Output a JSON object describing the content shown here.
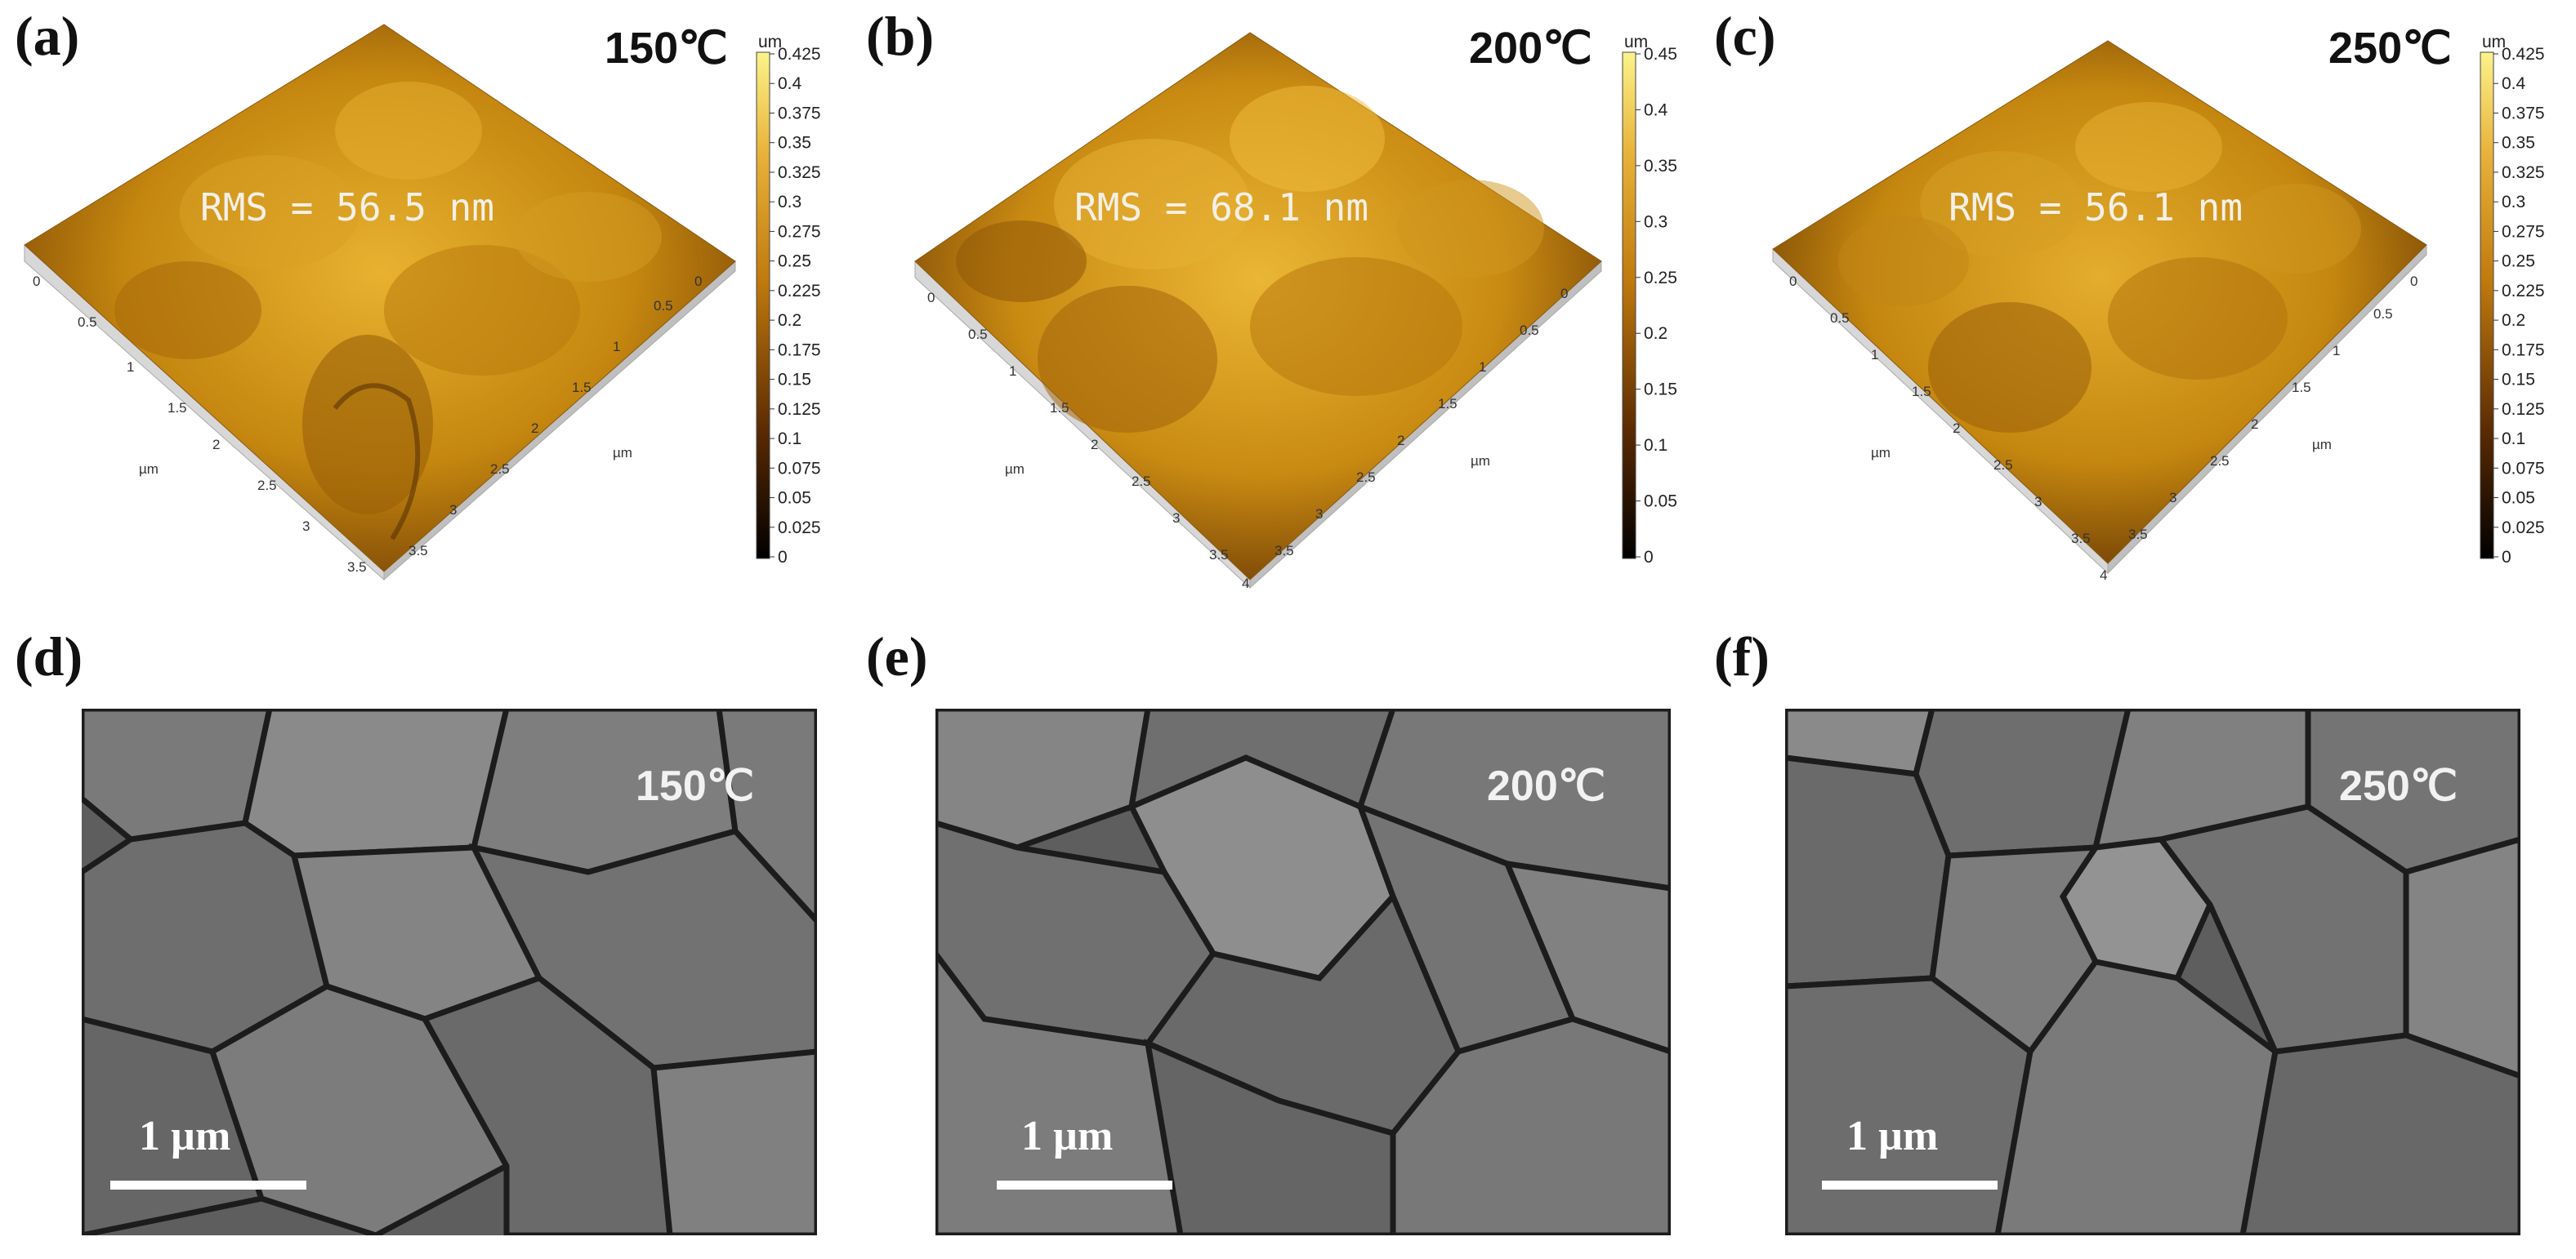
{
  "afm": [
    {
      "label": "(a)",
      "temp": "150℃",
      "rms": "RMS = 56.5 nm",
      "unit": "um",
      "cbar_ticks": [
        "0.425",
        "0.4",
        "0.375",
        "0.35",
        "0.325",
        "0.3",
        "0.275",
        "0.25",
        "0.225",
        "0.2",
        "0.175",
        "0.15",
        "0.125",
        "0.1",
        "0.075",
        "0.05",
        "0.025",
        "0"
      ],
      "axis_ticks": [
        "0",
        "0.5",
        "1",
        "1.5",
        "2",
        "2.5",
        "3",
        "3.5"
      ],
      "axis_unit": "µm"
    },
    {
      "label": "(b)",
      "temp": "200℃",
      "rms": "RMS = 68.1 nm",
      "unit": "um",
      "cbar_ticks": [
        "0.45",
        "0.4",
        "0.35",
        "0.3",
        "0.25",
        "0.2",
        "0.15",
        "0.1",
        "0.05",
        "0"
      ],
      "axis_ticks": [
        "0",
        "0.5",
        "1",
        "1.5",
        "2",
        "2.5",
        "3",
        "3.5",
        "4"
      ],
      "axis_unit": "µm"
    },
    {
      "label": "(c)",
      "temp": "250℃",
      "rms": "RMS = 56.1 nm",
      "unit": "um",
      "cbar_ticks": [
        "0.425",
        "0.4",
        "0.375",
        "0.35",
        "0.325",
        "0.3",
        "0.275",
        "0.25",
        "0.225",
        "0.2",
        "0.175",
        "0.15",
        "0.125",
        "0.1",
        "0.075",
        "0.05",
        "0.025",
        "0"
      ],
      "axis_ticks": [
        "0",
        "0.5",
        "1",
        "1.5",
        "2",
        "2.5",
        "3",
        "3.5",
        "4"
      ],
      "axis_unit": "µm"
    }
  ],
  "sem": [
    {
      "label": "(d)",
      "temp": "150℃",
      "scale": "1 µm"
    },
    {
      "label": "(e)",
      "temp": "200℃",
      "scale": "1 µm"
    },
    {
      "label": "(f)",
      "temp": "250℃",
      "scale": "1 µm"
    }
  ],
  "colors": {
    "afm_gold": "#c98a12",
    "afm_dark": "#5a3104",
    "afm_light": "#f3c24a",
    "sem_gray": "#6f6f6f"
  }
}
